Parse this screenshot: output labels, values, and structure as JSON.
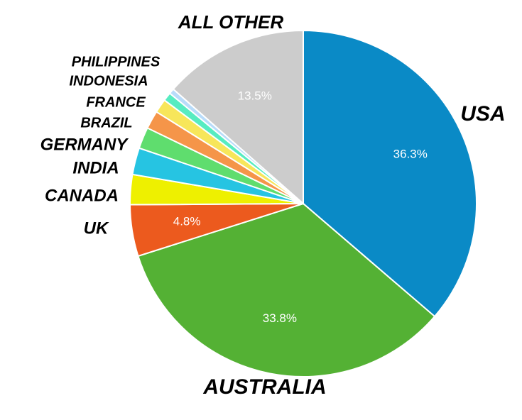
{
  "chart_data": {
    "type": "pie",
    "categories": [
      "USA",
      "AUSTRALIA",
      "UK",
      "CANADA",
      "INDIA",
      "GERMANY",
      "BRAZIL",
      "FRANCE",
      "INDONESIA",
      "PHILIPPINES",
      "ALL OTHER"
    ],
    "values": [
      36.3,
      33.8,
      4.8,
      2.8,
      2.5,
      2.0,
      1.7,
      1.3,
      0.8,
      0.5,
      13.5
    ],
    "value_labels": [
      "36.3%",
      "33.8%",
      "4.8%",
      null,
      null,
      null,
      null,
      null,
      null,
      null,
      "13.5%"
    ],
    "colors": [
      "#0a8ac6",
      "#54b134",
      "#ec5a1e",
      "#eef000",
      "#26c4e2",
      "#5fdd6e",
      "#f59549",
      "#f7e65a",
      "#57ecc1",
      "#b8dcfa",
      "#cccccc"
    ]
  }
}
